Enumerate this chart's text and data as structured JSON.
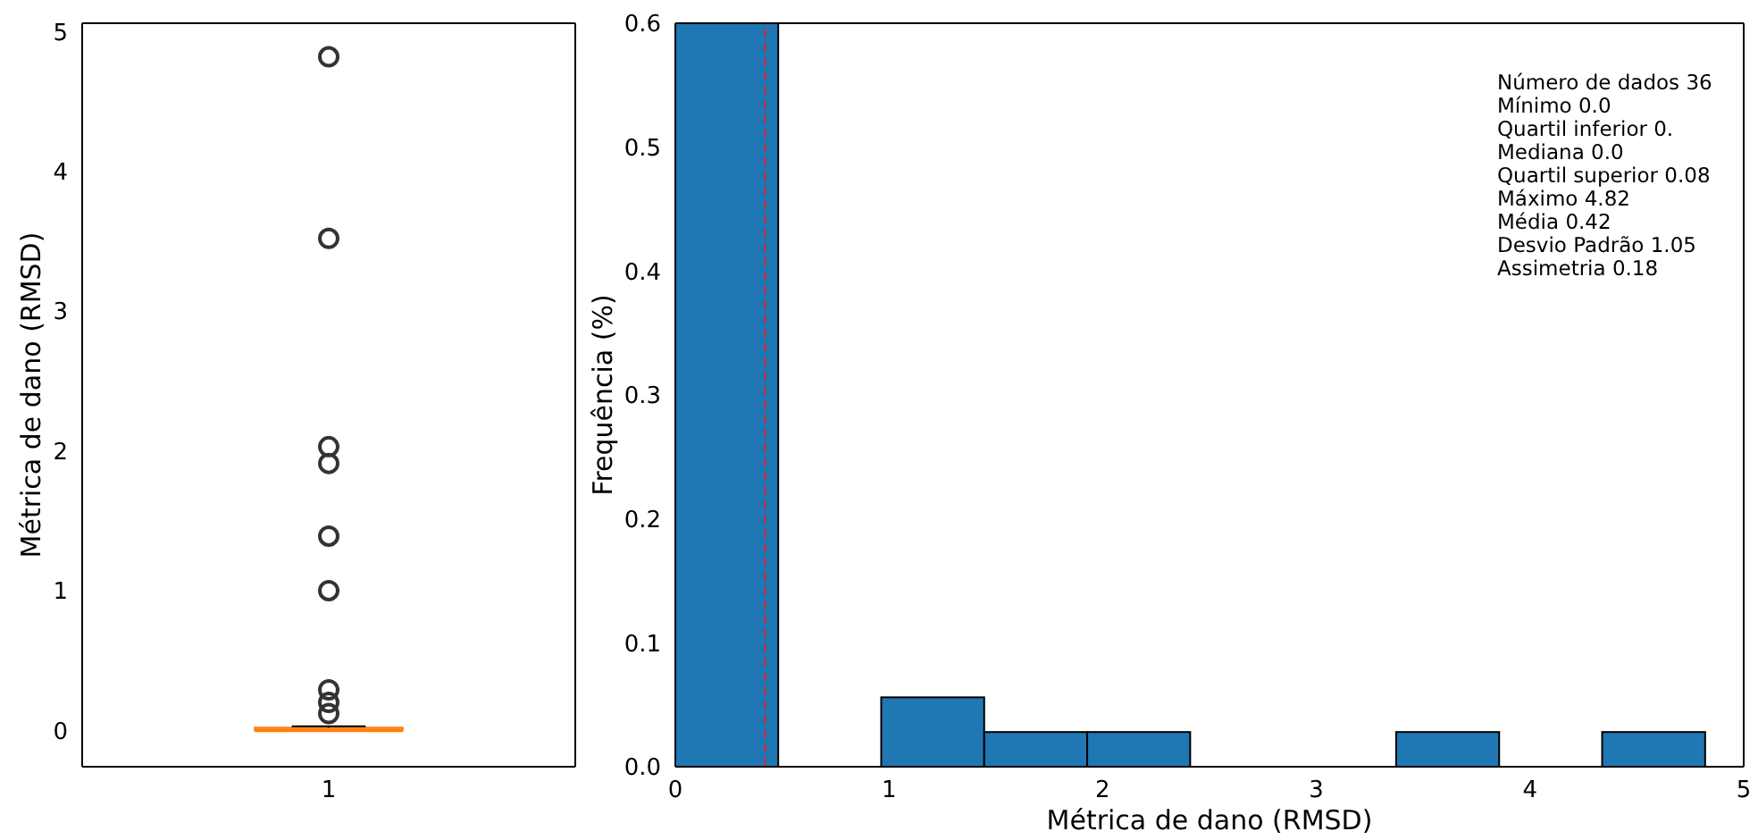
{
  "chart_data": [
    {
      "type": "box",
      "ylabel": "Métrica de dano (RMSD)",
      "categories": [
        "1"
      ],
      "ylim": [
        -0.26,
        5.06
      ],
      "yticks": [
        0,
        1,
        2,
        3,
        4,
        5
      ],
      "boxes": [
        {
          "low": 0,
          "q1": 0,
          "median": 0,
          "q3": 0.02,
          "high": 0.03,
          "outliers": [
            4.82,
            3.52,
            2.03,
            1.91,
            1.39,
            1.0,
            0.29,
            0.2,
            0.12
          ]
        }
      ],
      "color": "#ff7f0e"
    },
    {
      "type": "histogram",
      "xlabel": "Métrica de dano (RMSD)",
      "ylabel": "Frequência (%)",
      "color": "#1f77b4",
      "bins": [
        0,
        0.482,
        0.964,
        1.446,
        1.928,
        2.41,
        2.892,
        3.374,
        3.856,
        4.338,
        4.82
      ],
      "values": [
        0.6,
        0,
        0.056,
        0.028,
        0.028,
        0,
        0,
        0.028,
        0,
        0.028
      ],
      "xlim": [
        0,
        5
      ],
      "xticks": [
        0,
        1,
        2,
        3,
        4,
        5
      ],
      "ylim": [
        0,
        0.6
      ],
      "yticks": [
        {
          "value": 0,
          "label": "0.0"
        },
        0.1,
        0.2,
        0.3,
        0.4,
        0.5,
        0.6
      ],
      "ref_lines": [
        {
          "axis": "x",
          "value": 0.42,
          "color": "#d62728",
          "line_style": "dashed"
        }
      ],
      "annotations": [
        "Número de dados 36",
        "Mínimo 0.0",
        "Quartil inferior 0.",
        "Mediana 0.0",
        "Quartil superior 0.08",
        "Máximo 4.82",
        "Média 0.42",
        "Desvio Padrão 1.05",
        "Assimetria 0.18"
      ]
    }
  ]
}
